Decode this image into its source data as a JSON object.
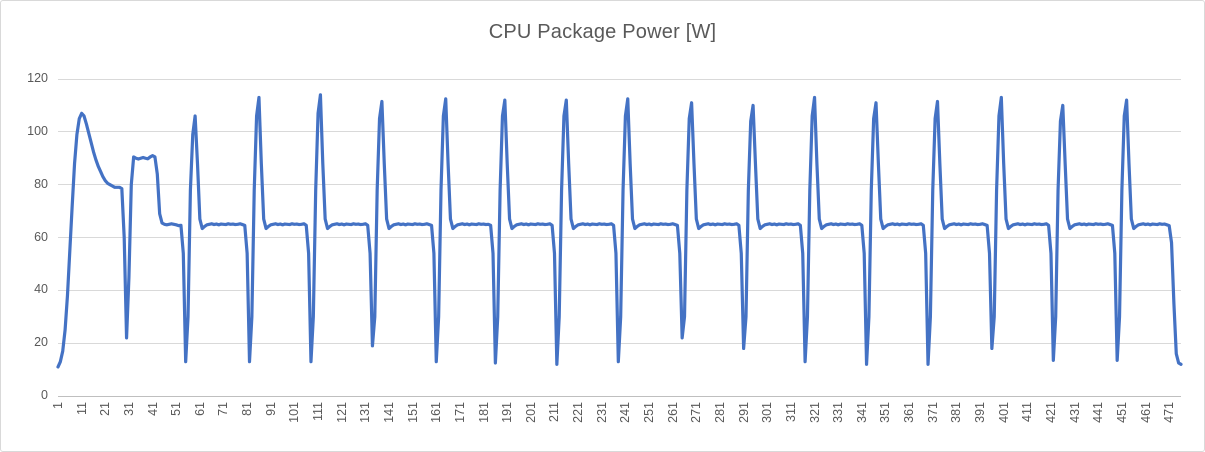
{
  "chart": {
    "title": "CPU Package Power [W]"
  },
  "colors": {
    "line": "#4472C4",
    "gridline": "#D9D9D9",
    "axis_line": "#BFBFBF",
    "text": "#595959",
    "border": "#D9D9D9",
    "background": "#FFFFFF"
  },
  "chart_data": {
    "type": "line",
    "title": "CPU Package Power [W]",
    "legend": "none",
    "grid": "horizontal",
    "line_color": "#4472C4",
    "x_start": 1,
    "x_count": 476,
    "x_tick_labels": [
      "1",
      "11",
      "21",
      "31",
      "41",
      "51",
      "61",
      "71",
      "81",
      "91",
      "101",
      "111",
      "121",
      "131",
      "141",
      "151",
      "161",
      "171",
      "181",
      "191",
      "201",
      "211",
      "221",
      "231",
      "241",
      "251",
      "261",
      "271",
      "281",
      "291",
      "301",
      "311",
      "321",
      "331",
      "341",
      "351",
      "361",
      "371",
      "381",
      "391",
      "401",
      "411",
      "421",
      "431",
      "441",
      "451",
      "461",
      "471"
    ],
    "y_ticks": [
      0,
      20,
      40,
      60,
      80,
      100,
      120
    ],
    "ylim": [
      0,
      120
    ],
    "values": [
      11,
      13,
      17,
      25,
      38,
      55,
      72,
      88,
      99,
      105,
      107,
      106,
      103,
      99.5,
      96,
      92.5,
      89.5,
      87,
      85,
      83,
      81.5,
      80.5,
      80,
      79.5,
      79,
      79,
      79,
      78.5,
      60,
      22,
      45,
      80,
      90.5,
      90,
      89.7,
      90,
      90.3,
      90,
      89.8,
      90.5,
      91,
      90.5,
      84,
      69,
      65.5,
      65,
      64.8,
      65,
      65.2,
      65,
      64.8,
      64.5,
      64.6,
      54,
      13,
      30,
      78,
      99,
      106,
      88,
      67,
      63.4,
      64.2,
      64.8,
      65,
      65.2,
      64.9,
      65.1,
      64.8,
      65.1,
      65,
      64.9,
      65.2,
      65,
      65.1,
      64.9,
      65,
      65.2,
      64.9,
      64.6,
      54,
      13,
      30,
      78,
      106,
      113,
      88,
      67,
      63.4,
      64.2,
      64.8,
      65,
      65.2,
      64.9,
      65.1,
      64.8,
      65.1,
      65,
      64.9,
      65.2,
      65,
      65.1,
      64.9,
      65,
      65.2,
      64.6,
      54,
      13,
      30,
      78,
      107,
      114,
      88,
      67,
      63.4,
      64.2,
      64.8,
      65,
      65.2,
      64.9,
      65.1,
      64.8,
      65.1,
      65,
      64.9,
      65.2,
      65,
      65.1,
      64.9,
      65,
      65.2,
      64.6,
      54,
      19,
      30,
      78,
      105,
      111.5,
      88,
      67,
      63.4,
      64.2,
      64.8,
      65,
      65.2,
      64.9,
      65.1,
      64.8,
      65.1,
      65,
      64.9,
      65.2,
      65,
      65.1,
      64.9,
      65,
      65.2,
      64.9,
      64.6,
      54,
      13,
      30,
      78,
      106,
      112.5,
      88,
      67,
      63.4,
      64.2,
      64.8,
      65,
      65.2,
      64.9,
      65.1,
      64.8,
      65.1,
      65,
      64.9,
      65.2,
      65,
      65.1,
      64.9,
      65,
      64.6,
      54,
      12.5,
      30,
      78,
      106,
      112,
      88,
      67,
      63.4,
      64.2,
      64.8,
      65,
      65.2,
      64.9,
      65.1,
      64.8,
      65.1,
      65,
      64.9,
      65.2,
      65,
      65.1,
      64.9,
      65,
      65.2,
      64.6,
      54,
      12,
      30,
      78,
      106,
      112,
      88,
      67,
      63.4,
      64.2,
      64.8,
      65,
      65.2,
      64.9,
      65.1,
      64.8,
      65.1,
      65,
      64.9,
      65.2,
      65,
      65.1,
      64.9,
      65,
      65.2,
      64.6,
      54,
      13,
      30,
      78,
      106,
      112.5,
      88,
      67,
      63.4,
      64.2,
      64.8,
      65,
      65.2,
      64.9,
      65.1,
      64.8,
      65.1,
      65,
      64.9,
      65.2,
      65,
      65.1,
      64.9,
      65,
      65.2,
      64.9,
      64.6,
      54,
      22,
      30,
      78,
      105,
      111,
      88,
      67,
      63.4,
      64.2,
      64.8,
      65,
      65.2,
      64.9,
      65.1,
      64.8,
      65.1,
      65,
      64.9,
      65.2,
      65,
      65.1,
      64.9,
      65,
      65.2,
      64.6,
      54,
      18,
      30,
      78,
      104,
      110,
      88,
      67,
      63.4,
      64.2,
      64.8,
      65,
      65.2,
      64.9,
      65.1,
      64.8,
      65.1,
      65,
      64.9,
      65.2,
      65,
      65.1,
      64.9,
      65,
      65.2,
      64.6,
      54,
      13,
      30,
      78,
      106,
      113,
      88,
      67,
      63.4,
      64.2,
      64.8,
      65,
      65.2,
      64.9,
      65.1,
      64.8,
      65.1,
      65,
      64.9,
      65.2,
      65,
      65.1,
      64.9,
      65,
      65.2,
      64.6,
      54,
      12,
      30,
      78,
      105,
      111,
      88,
      67,
      63.4,
      64.2,
      64.8,
      65,
      65.2,
      64.9,
      65.1,
      64.8,
      65.1,
      65,
      64.9,
      65.2,
      65,
      65.1,
      64.9,
      65,
      65.2,
      64.6,
      54,
      12,
      30,
      78,
      105,
      111.5,
      88,
      67,
      63.4,
      64.2,
      64.8,
      65,
      65.2,
      64.9,
      65.1,
      64.8,
      65.1,
      65,
      64.9,
      65.2,
      65,
      65.1,
      64.9,
      65,
      65.2,
      64.9,
      64.6,
      54,
      18,
      30,
      78,
      106,
      113,
      88,
      67,
      63.4,
      64.2,
      64.8,
      65,
      65.2,
      64.9,
      65.1,
      64.8,
      65.1,
      65,
      64.9,
      65.2,
      65,
      65.1,
      64.9,
      65,
      65.2,
      64.6,
      54,
      13.5,
      30,
      78,
      104,
      110,
      88,
      67,
      63.4,
      64.2,
      64.8,
      65,
      65.2,
      64.9,
      65.1,
      64.8,
      65.1,
      65,
      64.9,
      65.2,
      65,
      65.1,
      64.9,
      65,
      65.2,
      64.9,
      64.6,
      54,
      13.5,
      30,
      78,
      106,
      112,
      88,
      67,
      63.4,
      64.2,
      64.8,
      65,
      65.2,
      64.9,
      65.1,
      64.8,
      65.1,
      65,
      64.9,
      65.2,
      65,
      65.1,
      64.8,
      64.5,
      58,
      35,
      16,
      12.5,
      12
    ]
  }
}
